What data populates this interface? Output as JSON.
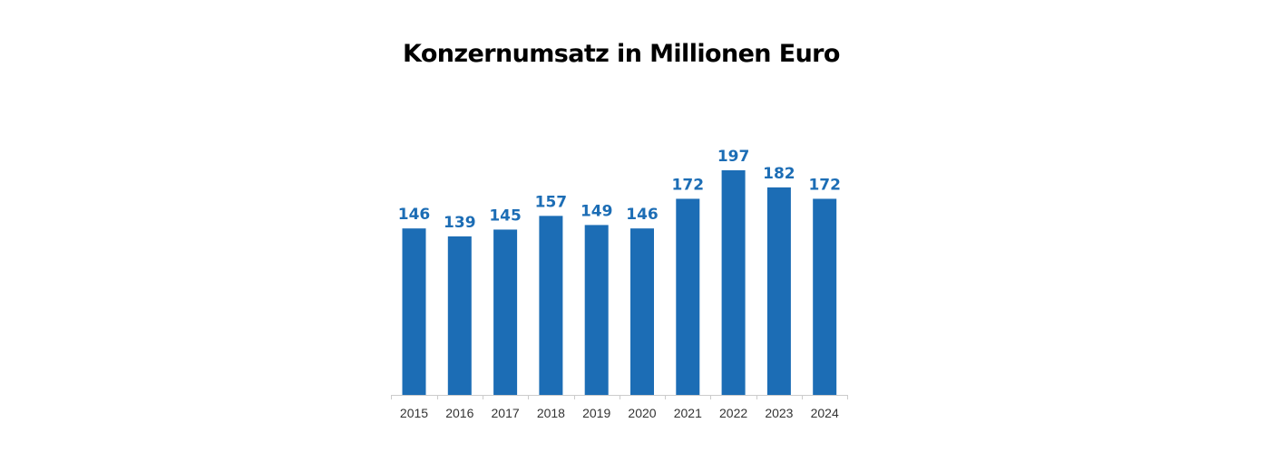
{
  "chart_data": {
    "type": "bar",
    "title": "Konzernumsatz in Millionen Euro",
    "xlabel": "",
    "ylabel": "",
    "categories": [
      "2015",
      "2016",
      "2017",
      "2018",
      "2019",
      "2020",
      "2021",
      "2022",
      "2023",
      "2024"
    ],
    "values": [
      146,
      139,
      145,
      157,
      149,
      146,
      172,
      197,
      182,
      172
    ],
    "data_labels": true,
    "grid": false,
    "legend": "none",
    "colors": {
      "bar": "#1c6db5",
      "value_label": "#1c6db5",
      "axis": "#cccccc",
      "tick_label": "#333333",
      "title": "#000000"
    }
  }
}
